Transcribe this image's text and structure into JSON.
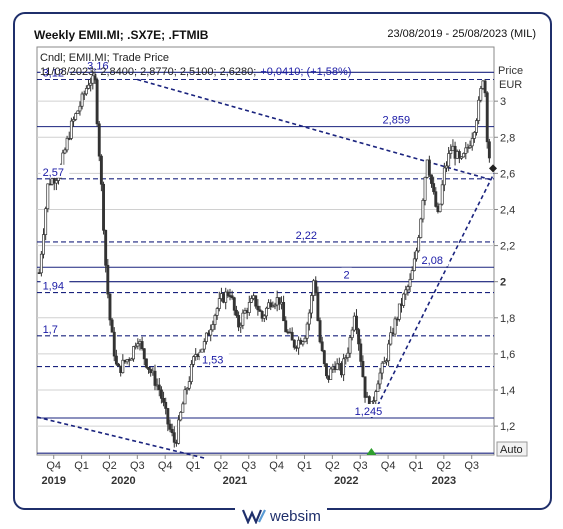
{
  "header": {
    "title": "Weekly EMII.MI; .SX7E; .FTMIB",
    "date_range": "23/08/2019 - 25/08/2023 (MIL)"
  },
  "info": {
    "line1": "Cndl; EMII.MI; Trade Price",
    "line2_prefix": "11/08/2023; 2,8400; 2,8770; 2,5100; 2,6280;",
    "line2_change": "+0,0410; (+1,58%)"
  },
  "axis": {
    "price_label": "Price",
    "currency_label": "EUR",
    "auto_label": "Auto"
  },
  "brand": {
    "name": "websim"
  },
  "colors": {
    "frame": "#1f2f6b",
    "level": "#1a237e",
    "level_text": "#1a1aa6",
    "candle": "#333333",
    "grid": "#d0d0d0",
    "change": "#1a1aa6",
    "marker": "#2e9e2e"
  },
  "chart_data": {
    "type": "candlestick",
    "ylim": [
      1.04,
      3.3
    ],
    "y_ticks": [
      {
        "v": 3,
        "label": "3"
      },
      {
        "v": 2.8,
        "label": "2,8"
      },
      {
        "v": 2.6,
        "label": "2,6"
      },
      {
        "v": 2.4,
        "label": "2,4"
      },
      {
        "v": 2.2,
        "label": "2,2"
      },
      {
        "v": 2,
        "label": "2",
        "bold": true
      },
      {
        "v": 1.8,
        "label": "1,8"
      },
      {
        "v": 1.6,
        "label": "1,6"
      },
      {
        "v": 1.4,
        "label": "1,4"
      },
      {
        "v": 1.2,
        "label": "1,2"
      }
    ],
    "x_ticks": [
      {
        "d": 2019.75,
        "label": "Q4"
      },
      {
        "d": 2020.0,
        "label": "Q1"
      },
      {
        "d": 2020.25,
        "label": "Q2"
      },
      {
        "d": 2020.5,
        "label": "Q3"
      },
      {
        "d": 2020.75,
        "label": "Q4"
      },
      {
        "d": 2021.0,
        "label": "Q1"
      },
      {
        "d": 2021.25,
        "label": "Q2"
      },
      {
        "d": 2021.5,
        "label": "Q3"
      },
      {
        "d": 2021.75,
        "label": "Q4"
      },
      {
        "d": 2022.0,
        "label": "Q1"
      },
      {
        "d": 2022.25,
        "label": "Q2"
      },
      {
        "d": 2022.5,
        "label": "Q3"
      },
      {
        "d": 2022.75,
        "label": "Q4"
      },
      {
        "d": 2023.0,
        "label": "Q1"
      },
      {
        "d": 2023.25,
        "label": "Q2"
      },
      {
        "d": 2023.5,
        "label": "Q3"
      }
    ],
    "year_ticks": [
      {
        "d": 2019.75,
        "label": "2019"
      },
      {
        "d": 2020.375,
        "label": "2020"
      },
      {
        "d": 2021.375,
        "label": "2021"
      },
      {
        "d": 2022.375,
        "label": "2022"
      },
      {
        "d": 2023.25,
        "label": "2023"
      }
    ],
    "levels": [
      {
        "v": 3.16,
        "label": "3,16",
        "style": "solid",
        "label_d": 2020.05
      },
      {
        "v": 3.12,
        "label": "3,12",
        "style": "dashed",
        "label_d": 2019.65
      },
      {
        "v": 2.859,
        "label": "2,859",
        "style": "solid",
        "label_d": 2022.7
      },
      {
        "v": 2.57,
        "label": "2,57",
        "style": "dashed",
        "label_d": 2019.65
      },
      {
        "v": 2.22,
        "label": "2,22",
        "style": "dashed",
        "label_d": 2021.92
      },
      {
        "v": 2.08,
        "label": "2,08",
        "style": "solid",
        "label_d": 2023.05
      },
      {
        "v": 2.0,
        "label": "2",
        "style": "solid",
        "label_d": 2022.35
      },
      {
        "v": 1.94,
        "label": "1,94",
        "style": "dashed",
        "label_d": 2019.65
      },
      {
        "v": 1.7,
        "label": "1,7",
        "style": "dashed",
        "label_d": 2019.65
      },
      {
        "v": 1.53,
        "label": "1,53",
        "style": "dashed",
        "label_d": 2021.08
      },
      {
        "v": 1.245,
        "label": "1,245",
        "style": "solid",
        "label_d": 2022.45
      },
      {
        "v": 1.05,
        "label": "",
        "style": "solid",
        "label_d": 2019.65
      }
    ],
    "trendlines": [
      {
        "from": [
          2019.6,
          1.25
        ],
        "to": [
          2021.12,
          1.02
        ]
      },
      {
        "from": [
          2020.5,
          3.12
        ],
        "to": [
          2023.7,
          2.56
        ]
      },
      {
        "from": [
          2022.6,
          1.245
        ],
        "to": [
          2023.7,
          2.6
        ]
      }
    ],
    "closes": [
      [
        2019.62,
        2.05
      ],
      [
        2019.7,
        2.55
      ],
      [
        2019.8,
        2.6
      ],
      [
        2019.9,
        2.85
      ],
      [
        2020.0,
        3.0
      ],
      [
        2020.07,
        3.12
      ],
      [
        2020.12,
        3.1
      ],
      [
        2020.16,
        2.7
      ],
      [
        2020.19,
        2.4
      ],
      [
        2020.22,
        2.05
      ],
      [
        2020.26,
        1.75
      ],
      [
        2020.32,
        1.5
      ],
      [
        2020.38,
        1.55
      ],
      [
        2020.45,
        1.6
      ],
      [
        2020.5,
        1.7
      ],
      [
        2020.55,
        1.6
      ],
      [
        2020.62,
        1.5
      ],
      [
        2020.7,
        1.4
      ],
      [
        2020.78,
        1.2
      ],
      [
        2020.84,
        1.1
      ],
      [
        2020.9,
        1.3
      ],
      [
        2020.96,
        1.45
      ],
      [
        2021.02,
        1.6
      ],
      [
        2021.1,
        1.65
      ],
      [
        2021.18,
        1.8
      ],
      [
        2021.25,
        1.9
      ],
      [
        2021.33,
        1.95
      ],
      [
        2021.4,
        1.75
      ],
      [
        2021.48,
        1.85
      ],
      [
        2021.55,
        1.9
      ],
      [
        2021.62,
        1.8
      ],
      [
        2021.7,
        1.9
      ],
      [
        2021.78,
        1.9
      ],
      [
        2021.82,
        1.75
      ],
      [
        2021.9,
        1.65
      ],
      [
        2022.0,
        1.7
      ],
      [
        2022.05,
        1.85
      ],
      [
        2022.09,
        2.05
      ],
      [
        2022.13,
        1.7
      ],
      [
        2022.2,
        1.45
      ],
      [
        2022.27,
        1.55
      ],
      [
        2022.33,
        1.5
      ],
      [
        2022.4,
        1.65
      ],
      [
        2022.45,
        1.85
      ],
      [
        2022.5,
        1.6
      ],
      [
        2022.55,
        1.35
      ],
      [
        2022.6,
        1.3
      ],
      [
        2022.65,
        1.45
      ],
      [
        2022.72,
        1.55
      ],
      [
        2022.8,
        1.75
      ],
      [
        2022.88,
        1.9
      ],
      [
        2022.95,
        2.0
      ],
      [
        2023.0,
        2.15
      ],
      [
        2023.05,
        2.4
      ],
      [
        2023.1,
        2.7
      ],
      [
        2023.15,
        2.5
      ],
      [
        2023.2,
        2.35
      ],
      [
        2023.25,
        2.6
      ],
      [
        2023.32,
        2.75
      ],
      [
        2023.4,
        2.65
      ],
      [
        2023.47,
        2.75
      ],
      [
        2023.52,
        2.85
      ],
      [
        2023.57,
        3.0
      ],
      [
        2023.61,
        3.18
      ],
      [
        2023.64,
        2.8
      ],
      [
        2023.67,
        2.63
      ]
    ],
    "last_close": 2.628,
    "signal_marker_d": 2022.6
  }
}
